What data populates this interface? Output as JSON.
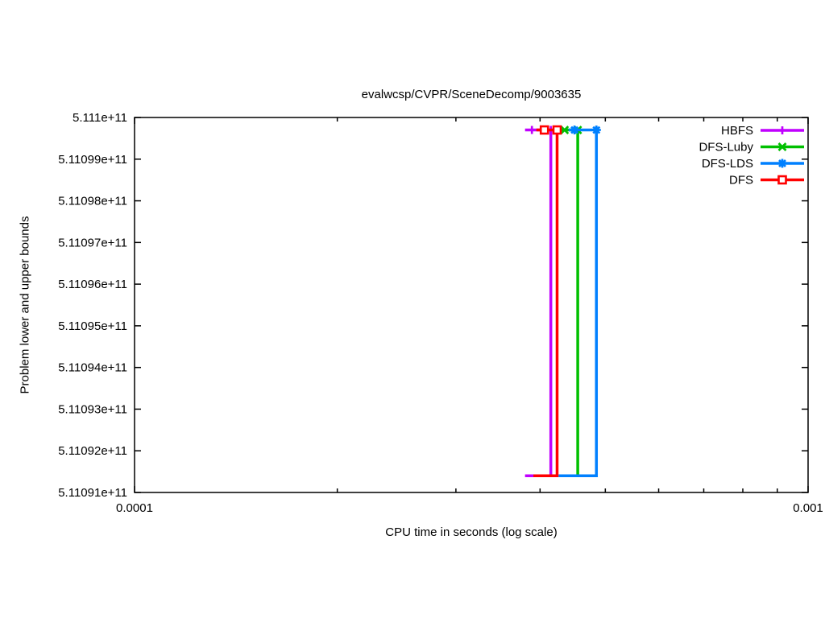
{
  "chart_data": {
    "type": "line",
    "title": "evalwcsp/CVPR/SceneDecomp/9003635",
    "xlabel": "CPU time in seconds (log scale)",
    "ylabel": "Problem lower and upper bounds",
    "x_scale": "log",
    "grid": false,
    "xlim": [
      0.0001,
      0.001
    ],
    "ylim": [
      511091000000,
      511100000000
    ],
    "x_ticks": [
      {
        "value": 0.0001,
        "label": "0.0001"
      },
      {
        "value": 0.001,
        "label": "0.001"
      }
    ],
    "x_minor_ticks": [
      0.0002,
      0.0003,
      0.0004,
      0.0005,
      0.0006,
      0.0007,
      0.0008,
      0.0009
    ],
    "y_ticks": [
      {
        "value": 511100000000,
        "label": "5.111e+11"
      },
      {
        "value": 511099000000,
        "label": "5.11099e+11"
      },
      {
        "value": 511098000000,
        "label": "5.11098e+11"
      },
      {
        "value": 511097000000,
        "label": "5.11097e+11"
      },
      {
        "value": 511096000000,
        "label": "5.11096e+11"
      },
      {
        "value": 511095000000,
        "label": "5.11095e+11"
      },
      {
        "value": 511094000000,
        "label": "5.11094e+11"
      },
      {
        "value": 511093000000,
        "label": "5.11093e+11"
      },
      {
        "value": 511092000000,
        "label": "5.11092e+11"
      },
      {
        "value": 511091000000,
        "label": "5.11091e+11"
      }
    ],
    "series": [
      {
        "name": "HBFS",
        "color": "#c000ff",
        "marker": "plus",
        "lb_value": 511091400000,
        "ub_value": 511099700000,
        "lb_start": 0.00038,
        "ub_start": 0.00038,
        "solve_time": 0.000415,
        "ub_markers": [
          0.000389,
          0.000415
        ]
      },
      {
        "name": "DFS-Luby",
        "color": "#00c000",
        "marker": "times",
        "lb_value": 511091400000,
        "ub_value": 511099700000,
        "lb_start": 0.00043,
        "ub_start": 0.00043,
        "solve_time": 0.000455,
        "ub_markers": [
          0.000435,
          0.000455
        ]
      },
      {
        "name": "DFS-LDS",
        "color": "#0080ff",
        "marker": "asterisk",
        "lb_value": 511091400000,
        "ub_value": 511099700000,
        "lb_start": 0.000426,
        "ub_start": 0.000441,
        "solve_time": 0.000485,
        "ub_markers": [
          0.00045,
          0.000485
        ]
      },
      {
        "name": "DFS",
        "color": "#ff0000",
        "marker": "square",
        "lb_value": 511091400000,
        "ub_value": 511099700000,
        "lb_start": 0.000391,
        "ub_start": 0.000395,
        "solve_time": 0.000424,
        "ub_markers": [
          0.000406,
          0.000424
        ]
      }
    ],
    "legend": {
      "position": "top-right",
      "entries": [
        "HBFS",
        "DFS-Luby",
        "DFS-LDS",
        "DFS"
      ]
    }
  }
}
